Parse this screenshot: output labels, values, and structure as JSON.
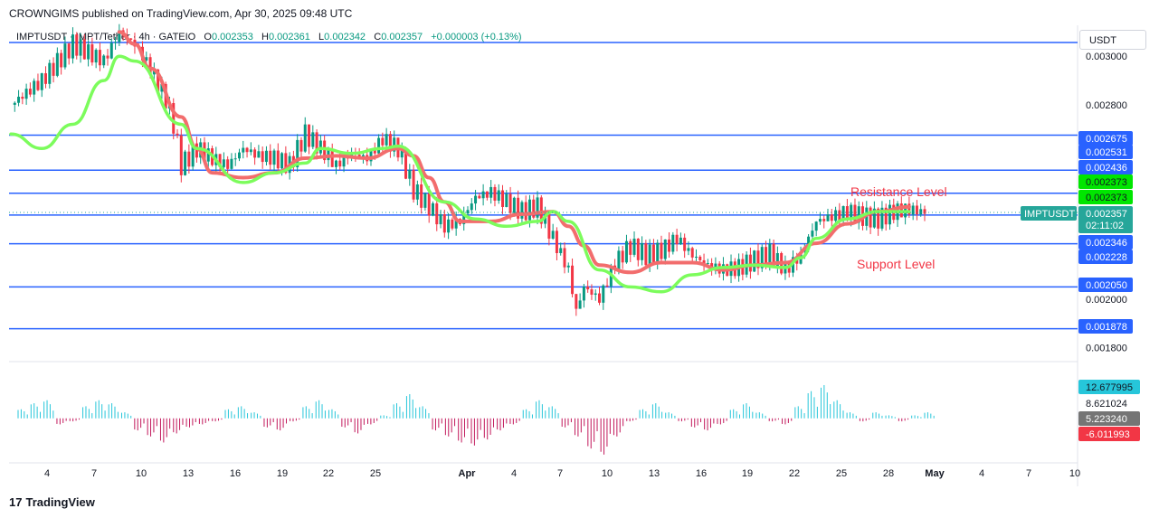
{
  "header": "CROWNGIMS published on TradingView.com, Apr 30, 2025 09:48 UTC",
  "legend": {
    "symbol": "IMPTUSDT · IMPT/Tether · 4h · GATEIO",
    "o_label": "O",
    "o": "0.002353",
    "h_label": "H",
    "h": "0.002361",
    "l_label": "L",
    "l": "0.002342",
    "c_label": "C",
    "c": "0.002357",
    "change": "+0.000003 (+0.13%)"
  },
  "unit": "USDT",
  "footer": "TradingView",
  "colors": {
    "level_line": "#2962ff",
    "up": "#089981",
    "down": "#f23645",
    "ma_fast": "#7cfc5c",
    "ma_slow": "#f26d6d",
    "hist_up": "#26c6da",
    "hist_down": "#c2185b"
  },
  "chart_data": {
    "type": "candlestick",
    "timeframe": "4h",
    "y_range": [
      0.00175,
      0.00312
    ],
    "y_ticks": [
      "0.003000",
      "0.002800",
      "0.002000",
      "0.001800"
    ],
    "y_tick_values": [
      0.003,
      0.0028,
      0.002,
      0.0018
    ],
    "x_ticks": [
      "4",
      "7",
      "10",
      "13",
      "16",
      "19",
      "22",
      "25",
      "Apr",
      "4",
      "7",
      "10",
      "13",
      "16",
      "19",
      "22",
      "25",
      "28",
      "May",
      "4",
      "7",
      "10"
    ],
    "levels": [
      {
        "label": "0.002675",
        "value": 0.002675
      },
      {
        "label": "0.002531",
        "value": 0.002531
      },
      {
        "label": "0.002436",
        "value": 0.002436
      },
      {
        "label": "0.002346",
        "value": 0.002346
      },
      {
        "label": "0.002228",
        "value": 0.002228
      },
      {
        "label": "0.002050",
        "value": 0.00205
      },
      {
        "label": "0.001878",
        "value": 0.001878
      }
    ],
    "top_level_value": 0.00312,
    "price_tags": [
      {
        "label": "0.002373",
        "value": 0.002373
      },
      {
        "label": "0.002373",
        "value": 0.002373
      },
      {
        "label": "0.002357",
        "value": 0.002357
      }
    ],
    "symbol_tag": "IMPTUSDT",
    "countdown": "02:11:02",
    "annotations": [
      "Resistance Level",
      "Support Level"
    ],
    "price_path": [
      [
        0,
        0.0028
      ],
      [
        2,
        0.0029
      ],
      [
        4,
        0.00305
      ],
      [
        6,
        0.00298
      ],
      [
        7,
        0.0031
      ],
      [
        8,
        0.00305
      ],
      [
        9,
        0.00295
      ],
      [
        10,
        0.00282
      ],
      [
        10.5,
        0.00272
      ],
      [
        11,
        0.00255
      ],
      [
        12,
        0.00262
      ],
      [
        13,
        0.00258
      ],
      [
        14,
        0.00255
      ],
      [
        15,
        0.00262
      ],
      [
        16,
        0.00259
      ],
      [
        17,
        0.00258
      ],
      [
        18,
        0.00255
      ],
      [
        19,
        0.00268
      ],
      [
        20,
        0.00262
      ],
      [
        21,
        0.00255
      ],
      [
        22,
        0.0026
      ],
      [
        23,
        0.00258
      ],
      [
        24,
        0.00266
      ],
      [
        25,
        0.00262
      ],
      [
        26,
        0.00245
      ],
      [
        27,
        0.00238
      ],
      [
        28,
        0.0023
      ],
      [
        29,
        0.00232
      ],
      [
        30,
        0.00242
      ],
      [
        31,
        0.00244
      ],
      [
        32,
        0.0024
      ],
      [
        33,
        0.00236
      ],
      [
        34,
        0.00238
      ],
      [
        35,
        0.00225
      ],
      [
        36,
        0.00212
      ],
      [
        36.5,
        0.00195
      ],
      [
        37,
        0.00205
      ],
      [
        38,
        0.002
      ],
      [
        39,
        0.00215
      ],
      [
        40,
        0.00222
      ],
      [
        41,
        0.00218
      ],
      [
        42,
        0.0022
      ],
      [
        43,
        0.00225
      ],
      [
        44,
        0.00218
      ],
      [
        45,
        0.00214
      ],
      [
        46,
        0.00212
      ],
      [
        47,
        0.00213
      ],
      [
        48,
        0.00216
      ],
      [
        49,
        0.00219
      ],
      [
        50,
        0.00212
      ],
      [
        51,
        0.00218
      ],
      [
        52,
        0.00232
      ],
      [
        53,
        0.00234
      ],
      [
        54,
        0.00236
      ],
      [
        55,
        0.00234
      ],
      [
        56,
        0.00233
      ],
      [
        57,
        0.00236
      ],
      [
        58,
        0.00237
      ],
      [
        59,
        0.002357
      ]
    ],
    "ma_fast": [
      [
        0,
        0.00268
      ],
      [
        2,
        0.00262
      ],
      [
        4,
        0.00272
      ],
      [
        6,
        0.0029
      ],
      [
        7,
        0.003
      ],
      [
        8,
        0.00298
      ],
      [
        11,
        0.00272
      ],
      [
        12,
        0.00262
      ],
      [
        15,
        0.00248
      ],
      [
        17,
        0.00252
      ],
      [
        19,
        0.00256
      ],
      [
        20,
        0.00262
      ],
      [
        22,
        0.0026
      ],
      [
        24,
        0.00262
      ],
      [
        25,
        0.00263
      ],
      [
        28,
        0.0024
      ],
      [
        30,
        0.00233
      ],
      [
        32,
        0.0023
      ],
      [
        34,
        0.00232
      ],
      [
        35,
        0.00236
      ],
      [
        36,
        0.00232
      ],
      [
        38,
        0.00212
      ],
      [
        40,
        0.00205
      ],
      [
        42,
        0.00203
      ],
      [
        44,
        0.0021
      ],
      [
        46,
        0.00213
      ],
      [
        48,
        0.00214
      ],
      [
        50,
        0.00213
      ],
      [
        51,
        0.00217
      ],
      [
        52,
        0.00225
      ],
      [
        54,
        0.00233
      ],
      [
        56,
        0.00236
      ],
      [
        58,
        0.00236
      ]
    ],
    "ma_slow": [
      [
        7,
        0.0031
      ],
      [
        8,
        0.00305
      ],
      [
        9,
        0.00295
      ],
      [
        11,
        0.00275
      ],
      [
        12,
        0.00262
      ],
      [
        13,
        0.00252
      ],
      [
        15,
        0.0025
      ],
      [
        17,
        0.00252
      ],
      [
        19,
        0.00258
      ],
      [
        21,
        0.00259
      ],
      [
        23,
        0.00258
      ],
      [
        25,
        0.00262
      ],
      [
        26,
        0.00259
      ],
      [
        27,
        0.0025
      ],
      [
        28,
        0.0024
      ],
      [
        29,
        0.00232
      ],
      [
        31,
        0.00232
      ],
      [
        33,
        0.00235
      ],
      [
        35,
        0.00236
      ],
      [
        36,
        0.0023
      ],
      [
        37,
        0.00222
      ],
      [
        38,
        0.00214
      ],
      [
        40,
        0.00211
      ],
      [
        42,
        0.00215
      ],
      [
        44,
        0.00215
      ],
      [
        46,
        0.00212
      ],
      [
        48,
        0.00214
      ],
      [
        50,
        0.00215
      ],
      [
        52,
        0.00223
      ],
      [
        54,
        0.00231
      ],
      [
        56,
        0.00236
      ],
      [
        58,
        0.00238
      ]
    ],
    "oscillator": {
      "y_ticks": [
        "12.677995",
        "8.621024",
        "5.223240",
        "-6.011993"
      ],
      "range": [
        -14,
        18
      ],
      "values": [
        3,
        5,
        6,
        -2,
        -1,
        4,
        6,
        5,
        2,
        -4,
        -6,
        -8,
        -5,
        -3,
        -2,
        -1,
        3,
        4,
        2,
        -3,
        -4,
        -1,
        4,
        6,
        3,
        -3,
        -5,
        -2,
        1,
        5,
        8,
        4,
        -4,
        -6,
        -8,
        -9,
        -7,
        -4,
        -2,
        3,
        6,
        4,
        -3,
        -6,
        -10,
        -12,
        -6,
        -1,
        3,
        5,
        2,
        -1,
        -3,
        -4,
        -2,
        3,
        5,
        2,
        -1,
        -2,
        4,
        9,
        11,
        6,
        2,
        -1,
        2,
        1,
        -1,
        1,
        2
      ]
    }
  }
}
